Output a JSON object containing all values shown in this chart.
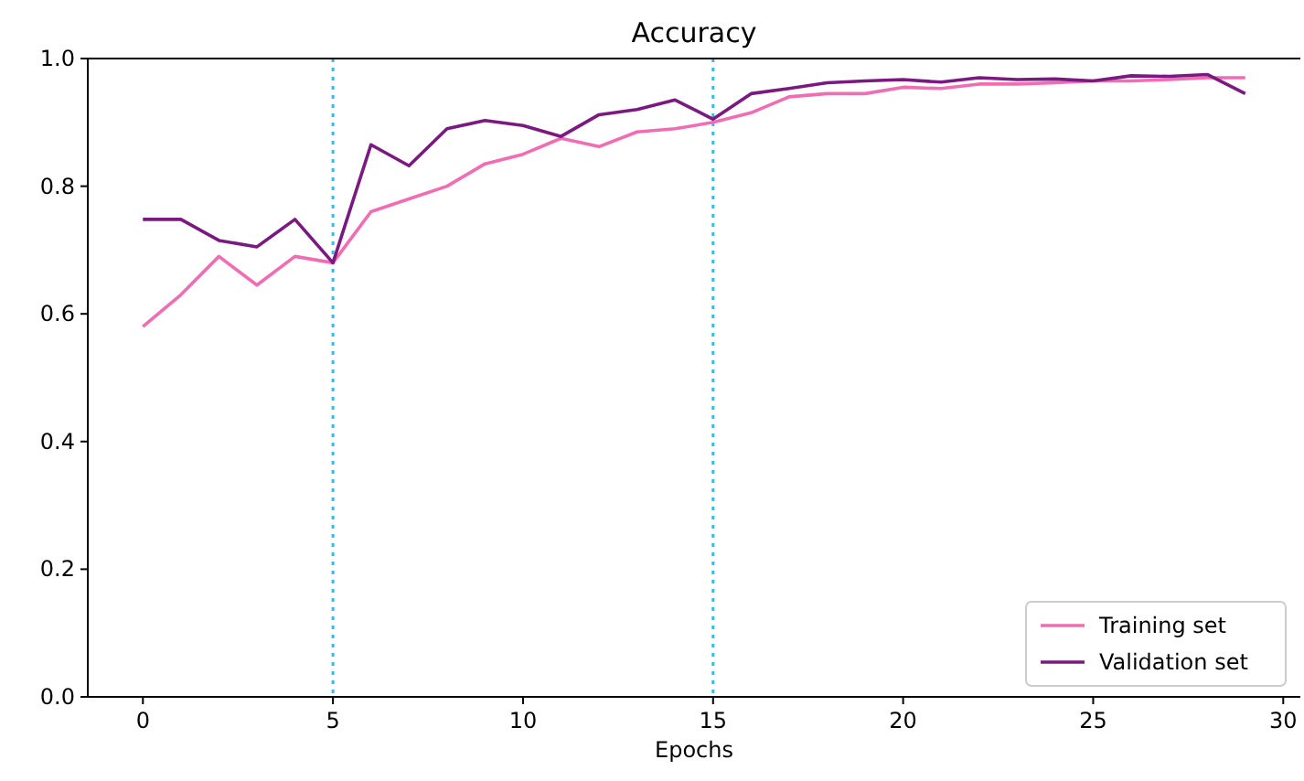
{
  "chart_data": {
    "type": "line",
    "title": "Accuracy",
    "xlabel": "Epochs",
    "x": [
      0,
      1,
      2,
      3,
      4,
      5,
      6,
      7,
      8,
      9,
      10,
      11,
      12,
      13,
      14,
      15,
      16,
      17,
      18,
      19,
      20,
      21,
      22,
      23,
      24,
      25,
      26,
      27,
      28,
      29
    ],
    "series": [
      {
        "name": "Training set",
        "color": "#f06db4",
        "values": [
          0.58,
          0.63,
          0.69,
          0.645,
          0.69,
          0.68,
          0.76,
          0.78,
          0.8,
          0.835,
          0.85,
          0.875,
          0.862,
          0.885,
          0.89,
          0.9,
          0.915,
          0.94,
          0.945,
          0.945,
          0.955,
          0.953,
          0.96,
          0.96,
          0.962,
          0.965,
          0.965,
          0.967,
          0.97,
          0.97
        ]
      },
      {
        "name": "Validation set",
        "color": "#7a1a80",
        "values": [
          0.748,
          0.748,
          0.715,
          0.705,
          0.748,
          0.68,
          0.865,
          0.832,
          0.89,
          0.903,
          0.895,
          0.878,
          0.912,
          0.92,
          0.935,
          0.905,
          0.945,
          0.953,
          0.962,
          0.965,
          0.967,
          0.963,
          0.97,
          0.967,
          0.968,
          0.965,
          0.973,
          0.972,
          0.975,
          0.945
        ]
      }
    ],
    "xlim": [
      -1.45,
      30.45
    ],
    "xticks": [
      0,
      5,
      10,
      15,
      20,
      25,
      30
    ],
    "ylim": [
      0,
      1
    ],
    "yticks": [
      {
        "value": 0,
        "label": "0.0"
      },
      {
        "value": 0.2,
        "label": "0.2"
      },
      {
        "value": 0.4,
        "label": "0.4"
      },
      {
        "value": 0.6,
        "label": "0.6"
      },
      {
        "value": 0.8,
        "label": "0.8"
      },
      {
        "value": 1,
        "label": "1.0"
      }
    ],
    "ref_lines": [
      {
        "axis": "x",
        "value": 5,
        "color": "#33bbee",
        "line_style": "dotted"
      },
      {
        "axis": "x",
        "value": 15,
        "color": "#33bbee",
        "line_style": "dotted"
      }
    ],
    "legend": "bottom right",
    "grid": false,
    "line_style": "solid",
    "marker": "none"
  }
}
